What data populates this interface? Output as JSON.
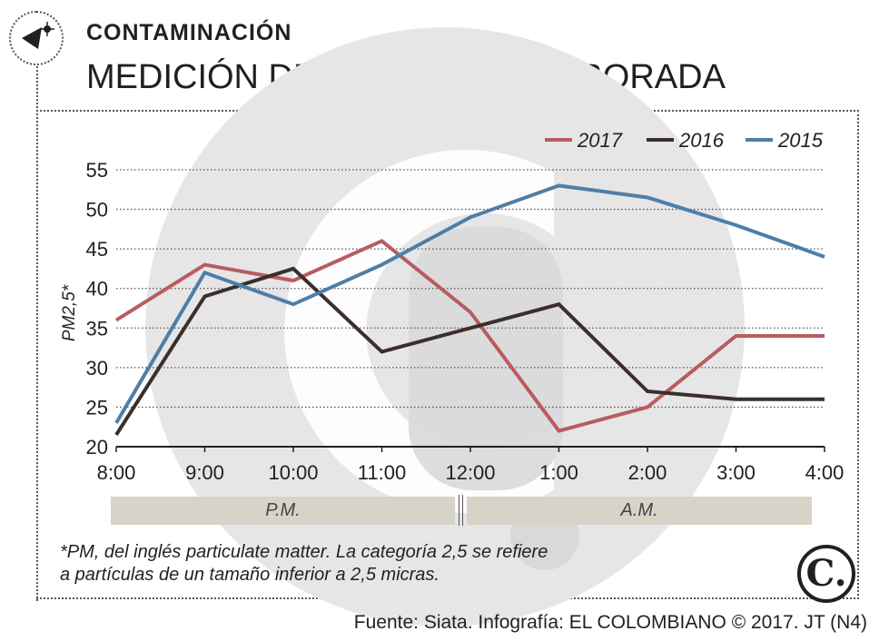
{
  "header": {
    "kicker": "CONTAMINACIÓN",
    "title": "MEDICIÓN DEL AIRE EN LA ALBORADA"
  },
  "chart_data": {
    "type": "line",
    "title": "MEDICIÓN DEL AIRE EN LA ALBORADA",
    "xlabel": "",
    "ylabel": "PM2,5*",
    "categories": [
      "8:00",
      "9:00",
      "10:00",
      "11:00",
      "12:00",
      "1:00",
      "2:00",
      "3:00",
      "4:00"
    ],
    "ylim": [
      20,
      55
    ],
    "yticks": [
      "20",
      "25",
      "30",
      "35",
      "40",
      "45",
      "50",
      "55"
    ],
    "grid": "horizontal dotted",
    "legend_position": "top-right",
    "series": [
      {
        "name": "2017",
        "color": "#b85c60",
        "values": [
          36,
          43,
          41,
          46,
          37,
          22,
          25,
          34,
          34
        ]
      },
      {
        "name": "2016",
        "color": "#3b2f2b",
        "values": [
          21.5,
          39,
          42.5,
          32,
          35,
          38,
          27,
          26,
          26
        ]
      },
      {
        "name": "2015",
        "color": "#4e7ea6",
        "values": [
          23,
          42,
          38,
          43,
          49,
          53,
          51.5,
          48,
          44
        ]
      }
    ],
    "periods": [
      {
        "label": "P.M."
      },
      {
        "label": "A.M."
      }
    ]
  },
  "footnote": {
    "line1": "*PM, del inglés particulate matter. La categoría 2,5 se refiere",
    "line2": "a partículas de un tamaño inferior a 2,5 micras."
  },
  "source": "Fuente: Siata. Infografía: EL COLOMBIANO © 2017. JT (N4)",
  "brand": {
    "mark": "C."
  }
}
